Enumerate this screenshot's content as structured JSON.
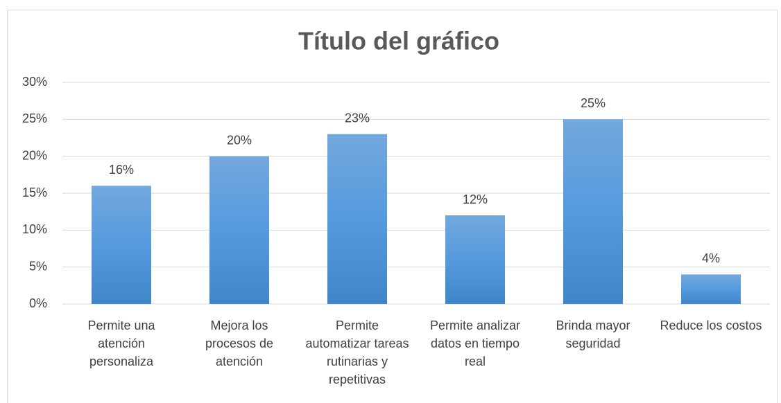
{
  "chart_data": {
    "type": "bar",
    "title": "Título del gráfico",
    "categories": [
      "Permite una atención personaliza",
      "Mejora los procesos de atención",
      "Permite automatizar tareas rutinarias y repetitivas",
      "Permite analizar datos en tiempo real",
      "Brinda mayor seguridad",
      "Reduce los costos"
    ],
    "values": [
      16,
      20,
      23,
      12,
      25,
      4
    ],
    "value_labels": [
      "16%",
      "20%",
      "23%",
      "12%",
      "25%",
      "4%"
    ],
    "color": "#5b9bd5",
    "ylim": [
      0,
      30
    ],
    "yticks": [
      {
        "value": 0,
        "label": "0%"
      },
      {
        "value": 5,
        "label": "5%"
      },
      {
        "value": 10,
        "label": "10%"
      },
      {
        "value": 15,
        "label": "15%"
      },
      {
        "value": 20,
        "label": "20%"
      },
      {
        "value": 25,
        "label": "25%"
      },
      {
        "value": 30,
        "label": "30%"
      }
    ],
    "grid": true
  }
}
